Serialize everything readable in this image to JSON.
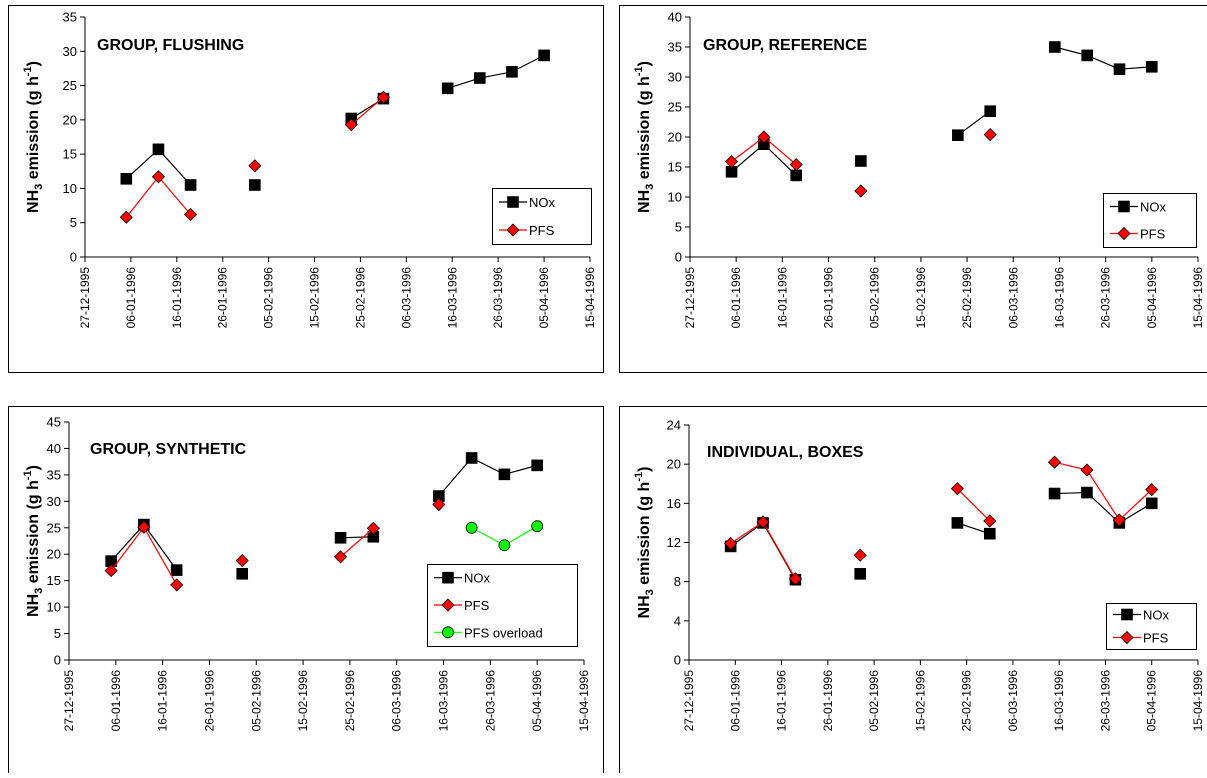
{
  "chart_data": [
    {
      "type": "line",
      "title": "GROUP, FLUSHING",
      "xlabel": "",
      "ylabel_main": "NH",
      "ylabel_sub": "3",
      "ylabel_rest": " emission (g h",
      "ylabel_sup": "-1",
      "ylabel_end": ")",
      "ylim": [
        0,
        35
      ],
      "yticks": [
        "0",
        "5",
        "10",
        "15",
        "20",
        "25",
        "30",
        "35"
      ],
      "xticks": [
        "27-12-1995",
        "06-01-1996",
        "16-01-1996",
        "26-01-1996",
        "05-02-1996",
        "15-02-1996",
        "25-02-1996",
        "06-03-1996",
        "16-03-1996",
        "26-03-1996",
        "05-04-1996",
        "15-04-1996"
      ],
      "grid": false,
      "legend_position": "bottom-right",
      "series": [
        {
          "name": "NOx",
          "color": "#000000",
          "marker": "square",
          "segments": [
            [
              [
                "1996-01-05",
                11.4
              ],
              [
                "1996-01-12",
                15.7
              ],
              [
                "1996-01-19",
                10.5
              ]
            ],
            [
              [
                "1996-02-02",
                10.5
              ]
            ],
            [
              [
                "1996-02-23",
                20.2
              ],
              [
                "1996-03-01",
                23.1
              ]
            ],
            [
              [
                "1996-03-15",
                24.6
              ],
              [
                "1996-03-22",
                26.1
              ],
              [
                "1996-03-29",
                27.0
              ],
              [
                "1996-04-05",
                29.4
              ]
            ]
          ]
        },
        {
          "name": "PFS",
          "color": "#ff0000",
          "marker": "diamond",
          "segments": [
            [
              [
                "1996-01-05",
                5.8
              ],
              [
                "1996-01-12",
                11.7
              ],
              [
                "1996-01-19",
                6.2
              ]
            ],
            [
              [
                "1996-02-02",
                13.3
              ]
            ],
            [
              [
                "1996-02-23",
                19.3
              ],
              [
                "1996-03-01",
                23.3
              ]
            ]
          ]
        }
      ]
    },
    {
      "type": "line",
      "title": "GROUP, REFERENCE",
      "xlabel": "",
      "ylabel_main": "NH",
      "ylabel_sub": "3",
      "ylabel_rest": " emission (g h",
      "ylabel_sup": "-1",
      "ylabel_end": ")",
      "ylim": [
        0,
        40
      ],
      "yticks": [
        "0",
        "5",
        "10",
        "15",
        "20",
        "25",
        "30",
        "35",
        "40"
      ],
      "xticks": [
        "27-12-1995",
        "06-01-1996",
        "16-01-1996",
        "26-01-1996",
        "05-02-1996",
        "15-02-1996",
        "25-02-1996",
        "06-03-1996",
        "16-03-1996",
        "26-03-1996",
        "05-04-1996",
        "15-04-1996"
      ],
      "grid": false,
      "legend_position": "bottom-right",
      "series": [
        {
          "name": "NOx",
          "color": "#000000",
          "marker": "square",
          "segments": [
            [
              [
                "1996-01-05",
                14.2
              ],
              [
                "1996-01-12",
                18.8
              ],
              [
                "1996-01-19",
                13.6
              ]
            ],
            [
              [
                "1996-02-02",
                16.0
              ]
            ],
            [
              [
                "1996-02-23",
                20.3
              ],
              [
                "1996-03-01",
                24.3
              ]
            ],
            [
              [
                "1996-03-15",
                35.0
              ],
              [
                "1996-03-22",
                33.6
              ],
              [
                "1996-03-29",
                31.3
              ],
              [
                "1996-04-05",
                31.7
              ]
            ]
          ]
        },
        {
          "name": "PFS",
          "color": "#ff0000",
          "marker": "diamond",
          "segments": [
            [
              [
                "1996-01-05",
                15.9
              ],
              [
                "1996-01-12",
                20.0
              ],
              [
                "1996-01-19",
                15.4
              ]
            ],
            [
              [
                "1996-02-02",
                11.0
              ]
            ],
            [
              [
                "1996-03-01",
                20.4
              ]
            ]
          ]
        }
      ]
    },
    {
      "type": "line",
      "title": "GROUP, SYNTHETIC",
      "xlabel": "",
      "ylabel_main": "NH",
      "ylabel_sub": "3",
      "ylabel_rest": " emission (g h",
      "ylabel_sup": "-1",
      "ylabel_end": ")",
      "ylim": [
        0,
        45
      ],
      "yticks": [
        "0",
        "5",
        "10",
        "15",
        "20",
        "25",
        "30",
        "35",
        "40",
        "45"
      ],
      "xticks": [
        "27-12-1995",
        "06-01-1996",
        "16-01-1996",
        "26-01-1996",
        "05-02-1996",
        "15-02-1996",
        "25-02-1996",
        "06-03-1996",
        "16-03-1996",
        "26-03-1996",
        "05-04-1996",
        "15-04-1996"
      ],
      "grid": false,
      "legend_position": "bottom-right",
      "series": [
        {
          "name": "NOx",
          "color": "#000000",
          "marker": "square",
          "segments": [
            [
              [
                "1996-01-05",
                18.7
              ],
              [
                "1996-01-12",
                25.6
              ],
              [
                "1996-01-19",
                17.0
              ]
            ],
            [
              [
                "1996-02-02",
                16.3
              ]
            ],
            [
              [
                "1996-02-23",
                23.1
              ],
              [
                "1996-03-01",
                23.3
              ]
            ],
            [
              [
                "1996-03-15",
                31.0
              ],
              [
                "1996-03-22",
                38.2
              ],
              [
                "1996-03-29",
                35.1
              ],
              [
                "1996-04-05",
                36.8
              ]
            ]
          ]
        },
        {
          "name": "PFS",
          "color": "#ff0000",
          "marker": "diamond",
          "segments": [
            [
              [
                "1996-01-05",
                16.9
              ],
              [
                "1996-01-12",
                25.1
              ],
              [
                "1996-01-19",
                14.2
              ]
            ],
            [
              [
                "1996-02-02",
                18.8
              ]
            ],
            [
              [
                "1996-02-23",
                19.5
              ],
              [
                "1996-03-01",
                24.9
              ]
            ],
            [
              [
                "1996-03-15",
                29.4
              ]
            ]
          ]
        },
        {
          "name": "PFS overload",
          "color": "#00ff00",
          "marker": "circle",
          "segments": [
            [
              [
                "1996-03-22",
                25.0
              ],
              [
                "1996-03-29",
                21.7
              ],
              [
                "1996-04-05",
                25.3
              ]
            ]
          ]
        }
      ]
    },
    {
      "type": "line",
      "title": "INDIVIDUAL, BOXES",
      "xlabel": "",
      "ylabel_main": "NH",
      "ylabel_sub": "3",
      "ylabel_rest": " emission (g h",
      "ylabel_sup": "-1",
      "ylabel_end": ")",
      "ylim": [
        0,
        24
      ],
      "yticks": [
        "0",
        "4",
        "8",
        "12",
        "16",
        "20",
        "24"
      ],
      "xticks": [
        "27-12-1995",
        "06-01-1996",
        "16-01-1996",
        "26-01-1996",
        "05-02-1996",
        "15-02-1996",
        "25-02-1996",
        "06-03-1996",
        "16-03-1996",
        "26-03-1996",
        "05-04-1996",
        "15-04-1996"
      ],
      "grid": false,
      "legend_position": "bottom-right",
      "series": [
        {
          "name": "NOx",
          "color": "#000000",
          "marker": "square",
          "segments": [
            [
              [
                "1996-01-05",
                11.6
              ],
              [
                "1996-01-12",
                14.0
              ],
              [
                "1996-01-19",
                8.2
              ]
            ],
            [
              [
                "1996-02-02",
                8.8
              ]
            ],
            [
              [
                "1996-02-23",
                14.0
              ],
              [
                "1996-03-01",
                12.9
              ]
            ],
            [
              [
                "1996-03-15",
                17.0
              ],
              [
                "1996-03-22",
                17.1
              ],
              [
                "1996-03-29",
                14.0
              ],
              [
                "1996-04-05",
                16.0
              ]
            ]
          ]
        },
        {
          "name": "PFS",
          "color": "#ff0000",
          "marker": "diamond",
          "segments": [
            [
              [
                "1996-01-05",
                11.9
              ],
              [
                "1996-01-12",
                14.1
              ],
              [
                "1996-01-19",
                8.3
              ]
            ],
            [
              [
                "1996-02-02",
                10.7
              ]
            ],
            [
              [
                "1996-02-23",
                17.5
              ],
              [
                "1996-03-01",
                14.2
              ]
            ],
            [
              [
                "1996-03-15",
                20.2
              ],
              [
                "1996-03-22",
                19.4
              ],
              [
                "1996-03-29",
                14.3
              ],
              [
                "1996-04-05",
                17.4
              ]
            ]
          ]
        }
      ]
    }
  ]
}
